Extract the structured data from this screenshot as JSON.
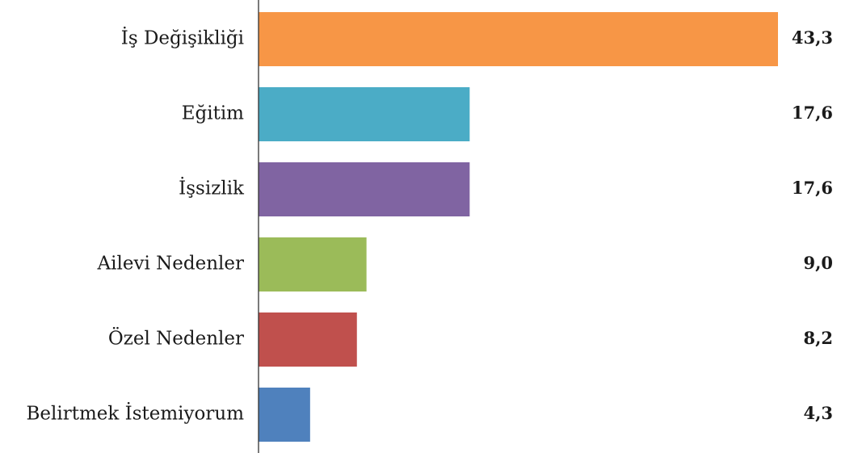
{
  "chart_data": {
    "type": "bar",
    "orientation": "horizontal",
    "categories": [
      "İş Değişikliği",
      "Eğitim",
      "İşsizlik",
      "Ailevi Nedenler",
      "Özel Nedenler",
      "Belirtmek İstemiyorum"
    ],
    "values": [
      43.3,
      17.6,
      17.6,
      9.0,
      8.2,
      4.3
    ],
    "value_labels": [
      "43,3",
      "17,6",
      "17,6",
      "9,0",
      "8,2",
      "4,3"
    ],
    "colors": [
      "#f79646",
      "#4bacc6",
      "#8064a2",
      "#9bbb59",
      "#c0504d",
      "#4f81bd"
    ]
  }
}
